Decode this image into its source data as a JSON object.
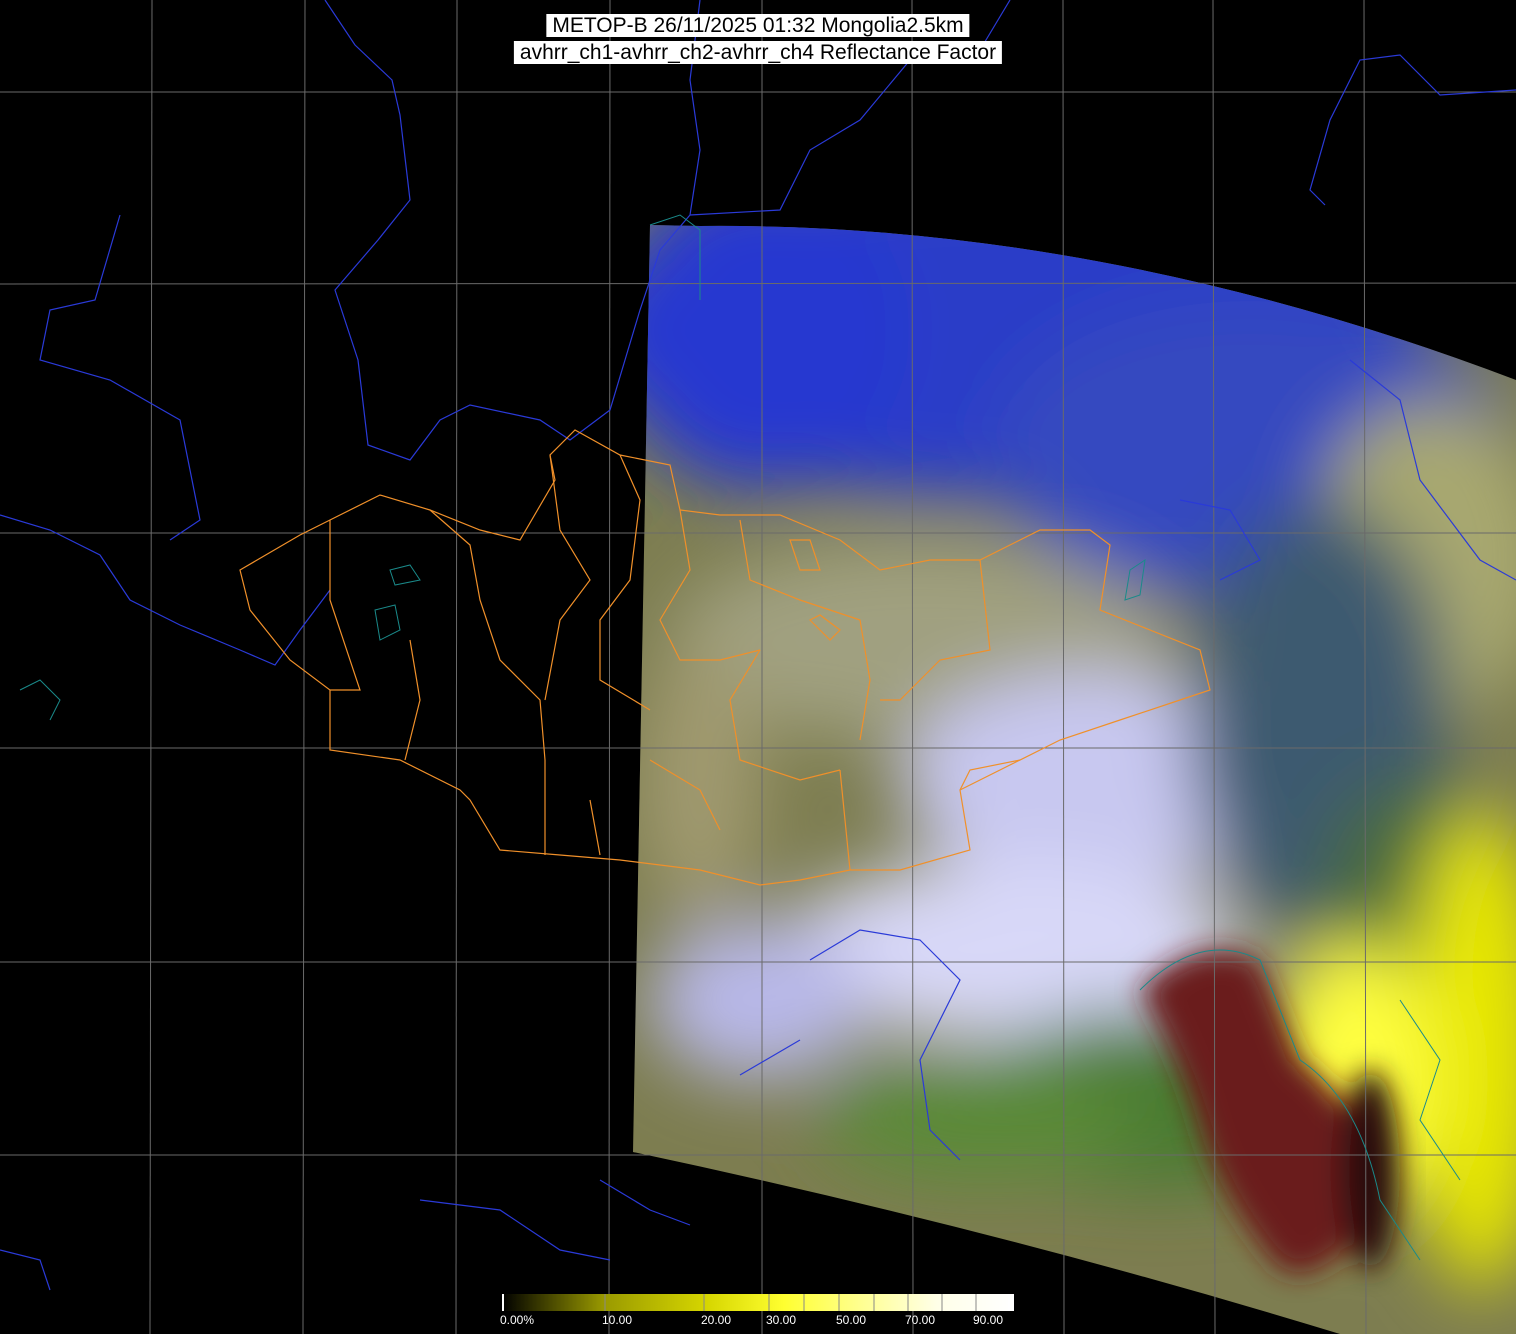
{
  "title": {
    "line1": "METOP-B 26/11/2025 01:32 Mongolia2.5km",
    "line2": "avhrr_ch1-avhrr_ch2-avhrr_ch4 Reflectance Factor"
  },
  "colorbar": {
    "unit": "%",
    "range": [
      0,
      100
    ],
    "tick_labels": [
      "0.00%",
      "10.00",
      "20.00",
      "30.00",
      "50.00",
      "70.00",
      "90.00"
    ],
    "tick_values": [
      0,
      10,
      20,
      30,
      40,
      50,
      60,
      70,
      80,
      90
    ],
    "colors": [
      "#000000",
      "#9a9a00",
      "#d6d600",
      "#ffff30",
      "#ffff90",
      "#ffffe0",
      "#ffffff"
    ]
  },
  "map": {
    "background": "#000000",
    "grid_color": "#6a6a6a",
    "country_border_color": "#2a3ad8",
    "province_border_color": "#f0902a",
    "coast_color": "#1a8a8a"
  }
}
